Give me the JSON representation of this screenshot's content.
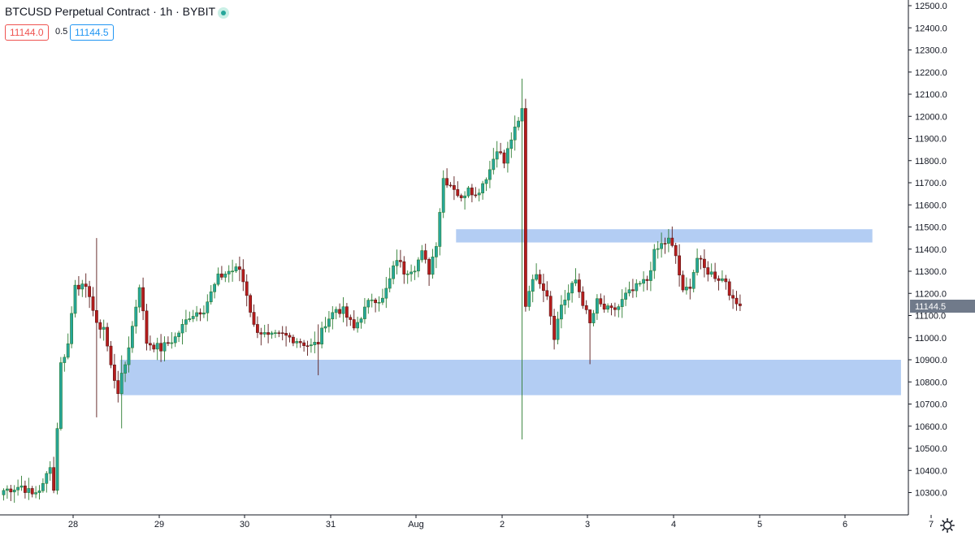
{
  "header": {
    "title": "BTCUSD Perpetual Contract · 1h · BYBIT",
    "bid": "11144.0",
    "spread": "0.5",
    "ask": "11144.5"
  },
  "colors": {
    "up": "#26a69a",
    "up_wick_and_border": "#2e7d32",
    "down": "#b71c1c",
    "zone": "#b3cdf3",
    "last_price_bg": "#707a8a"
  },
  "price_axis": {
    "ticks": [
      "12500.0",
      "12400.0",
      "12300.0",
      "12200.0",
      "12100.0",
      "12000.0",
      "11900.0",
      "11800.0",
      "11700.0",
      "11600.0",
      "11500.0",
      "11400.0",
      "11300.0",
      "11200.0",
      "11100.0",
      "11000.0",
      "10900.0",
      "10800.0",
      "10700.0",
      "10600.0",
      "10500.0",
      "10400.0",
      "10300.0"
    ],
    "last_price": "11144.5"
  },
  "time_axis": {
    "ticks": [
      "28",
      "29",
      "30",
      "31",
      "Aug",
      "2",
      "3",
      "4",
      "5",
      "6",
      "7"
    ]
  },
  "settings_icon": "gear-icon",
  "chart_data": {
    "type": "candlestick",
    "symbol": "BTCUSD Perpetual Contract",
    "interval": "1h",
    "exchange": "BYBIT",
    "ylim": [
      10240,
      12530
    ],
    "zones": [
      {
        "name": "resistance-zone",
        "from_bar": 127,
        "to_bar": 243,
        "low": 11430,
        "high": 11490
      },
      {
        "name": "support-zone",
        "from_bar": 33,
        "to_bar": 251,
        "low": 10740,
        "high": 10900
      }
    ],
    "wick_extremes": {
      "high": 12170,
      "low": 10540
    }
  }
}
